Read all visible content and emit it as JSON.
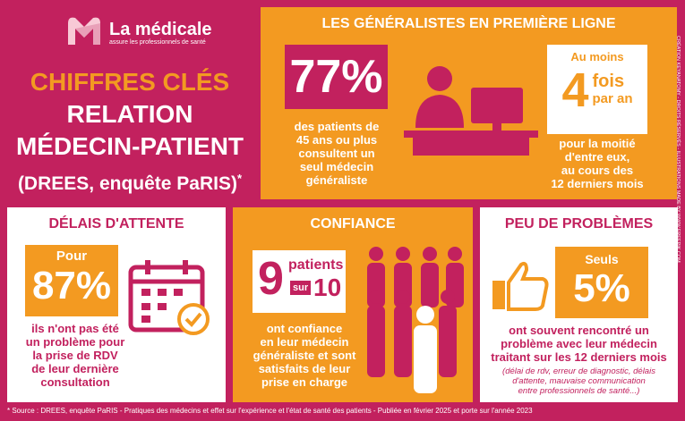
{
  "logo": {
    "name": "La médicale",
    "tagline": "assure les professionnels de santé"
  },
  "title": {
    "line1": "CHIFFRES CLÉS",
    "line2": "RELATION",
    "line3": "MÉDECIN-PATIENT",
    "line4": "(DREES, enquête PaRIS)",
    "asterisk": "*"
  },
  "generalistes": {
    "heading": "LES GÉNÉRALISTES EN PREMIÈRE LIGNE",
    "stat": "77%",
    "stat_text": [
      "des patients de",
      "45 ans ou plus",
      "consultent un",
      "seul médecin",
      "généraliste"
    ],
    "freq_prefix": "Au moins",
    "freq_number": "4",
    "freq_unit": "fois",
    "freq_suffix": "par an",
    "freq_text": [
      "pour la moitié",
      "d'entre eux,",
      "au cours des",
      "12 derniers mois"
    ]
  },
  "delais": {
    "heading": "DÉLAIS D'ATTENTE",
    "prefix": "Pour",
    "stat": "87%",
    "text": [
      "ils n'ont pas été",
      "un problème pour",
      "la prise de RDV",
      "de leur dernière",
      "consultation"
    ]
  },
  "confiance": {
    "heading": "CONFIANCE",
    "number": "9",
    "unit": "patients",
    "sur": "sur",
    "total": "10",
    "text": [
      "ont confiance",
      "en leur médecin",
      "généraliste et sont",
      "satisfaits de leur",
      "prise en charge"
    ]
  },
  "problemes": {
    "heading": "PEU DE PROBLÈMES",
    "prefix": "Seuls",
    "stat": "5%",
    "text": [
      "ont souvent rencontré un",
      "problème avec leur médecin",
      "traitant sur les 12 derniers mois"
    ],
    "note": [
      "(délai de rdv, erreur de diagnostic, délais",
      "d'attente, mauvaise communication",
      "entre professionnels de santé...)"
    ]
  },
  "footer": "* Source : DREES, enquête PaRIS - Pratiques des médecins et effet sur l'expérience et l'état de santé des patients - Publiée en février 2025 et porte sur l'année 2023",
  "credit": "CRÉATION KEYANATOMY - DROITS RÉSERVÉS - ILLUSTRATIONS MADE BY WWW.FREEPIK.COM"
}
